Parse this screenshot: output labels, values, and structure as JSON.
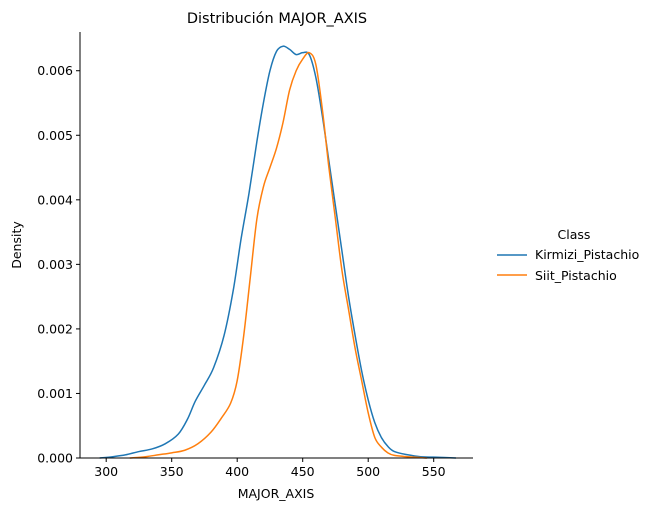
{
  "chart_data": {
    "type": "line",
    "title": "Distribución MAJOR_AXIS",
    "xlabel": "MAJOR_AXIS",
    "ylabel": "Density",
    "xlim": [
      280,
      580
    ],
    "ylim": [
      0,
      0.0066
    ],
    "xticks": [
      300,
      350,
      400,
      450,
      500,
      550
    ],
    "xtick_labels": [
      "300",
      "350",
      "400",
      "450",
      "500",
      "550"
    ],
    "yticks": [
      0,
      0.001,
      0.002,
      0.003,
      0.004,
      0.005,
      0.006
    ],
    "ytick_labels": [
      "0.000",
      "0.001",
      "0.002",
      "0.003",
      "0.004",
      "0.005",
      "0.006"
    ],
    "grid": false,
    "legend": {
      "title": "Class",
      "placement": "right-outside",
      "entries": [
        "Kirmizi_Pistachio",
        "Siit_Pistachio"
      ]
    },
    "series": [
      {
        "name": "Kirmizi_Pistachio",
        "color": "#1f77b4",
        "points": [
          [
            295,
            0.0
          ],
          [
            305,
            2e-05
          ],
          [
            315,
            5e-05
          ],
          [
            325,
            0.0001
          ],
          [
            335,
            0.00014
          ],
          [
            345,
            0.00022
          ],
          [
            355,
            0.00037
          ],
          [
            362,
            0.0006
          ],
          [
            368,
            0.00088
          ],
          [
            375,
            0.00113
          ],
          [
            382,
            0.0014
          ],
          [
            390,
            0.0019
          ],
          [
            397,
            0.0026
          ],
          [
            403,
            0.0034
          ],
          [
            409,
            0.0041
          ],
          [
            415,
            0.0049
          ],
          [
            420,
            0.0055
          ],
          [
            425,
            0.006
          ],
          [
            430,
            0.0063
          ],
          [
            435,
            0.00638
          ],
          [
            440,
            0.00633
          ],
          [
            445,
            0.00625
          ],
          [
            450,
            0.00628
          ],
          [
            455,
            0.00625
          ],
          [
            460,
            0.0059
          ],
          [
            465,
            0.0053
          ],
          [
            470,
            0.0046
          ],
          [
            475,
            0.0039
          ],
          [
            480,
            0.0032
          ],
          [
            485,
            0.0025
          ],
          [
            490,
            0.0019
          ],
          [
            495,
            0.00135
          ],
          [
            500,
            0.0009
          ],
          [
            505,
            0.00055
          ],
          [
            510,
            0.00032
          ],
          [
            515,
            0.00018
          ],
          [
            520,
            0.0001
          ],
          [
            530,
            5e-05
          ],
          [
            540,
            2e-05
          ],
          [
            555,
            1e-05
          ],
          [
            567,
            0.0
          ]
        ]
      },
      {
        "name": "Siit_Pistachio",
        "color": "#ff7f0e",
        "points": [
          [
            318,
            0.0
          ],
          [
            330,
            2e-05
          ],
          [
            340,
            5e-05
          ],
          [
            350,
            8e-05
          ],
          [
            360,
            0.00012
          ],
          [
            370,
            0.00022
          ],
          [
            380,
            0.0004
          ],
          [
            388,
            0.00062
          ],
          [
            395,
            0.00085
          ],
          [
            400,
            0.0012
          ],
          [
            405,
            0.0019
          ],
          [
            410,
            0.0028
          ],
          [
            415,
            0.0037
          ],
          [
            420,
            0.0042
          ],
          [
            425,
            0.0045
          ],
          [
            430,
            0.0048
          ],
          [
            435,
            0.0052
          ],
          [
            440,
            0.0057
          ],
          [
            445,
            0.006
          ],
          [
            450,
            0.00618
          ],
          [
            455,
            0.00628
          ],
          [
            460,
            0.0061
          ],
          [
            465,
            0.0054
          ],
          [
            470,
            0.0045
          ],
          [
            475,
            0.0037
          ],
          [
            480,
            0.0029
          ],
          [
            485,
            0.0023
          ],
          [
            490,
            0.0017
          ],
          [
            495,
            0.0012
          ],
          [
            500,
            0.0007
          ],
          [
            505,
            0.00032
          ],
          [
            510,
            0.00017
          ],
          [
            515,
            8e-05
          ],
          [
            520,
            4e-05
          ],
          [
            530,
            2e-05
          ],
          [
            545,
            0.0
          ]
        ]
      }
    ]
  }
}
